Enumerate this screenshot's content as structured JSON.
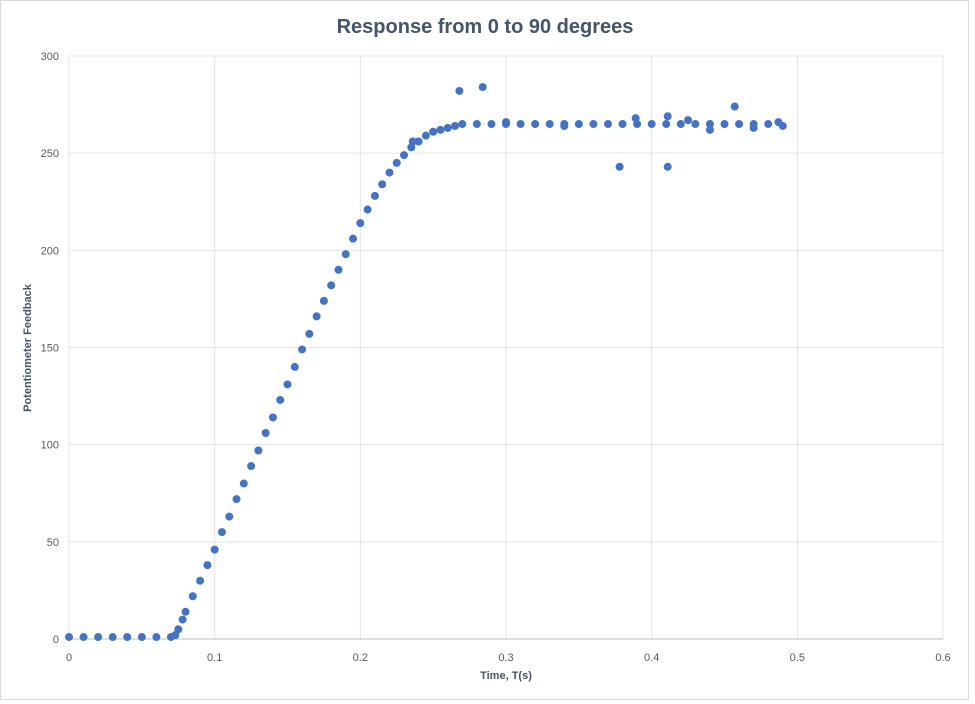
{
  "chart_data": {
    "type": "scatter",
    "title": "Response from 0 to 90 degrees",
    "xlabel": "Time, T(s)",
    "ylabel": "Potentiometer Feedback",
    "xlim": [
      0,
      0.6
    ],
    "ylim": [
      0,
      300
    ],
    "x_ticks": [
      "0",
      "0.1",
      "0.2",
      "0.3",
      "0.4",
      "0.5",
      "0.6"
    ],
    "y_ticks": [
      "0",
      "50",
      "100",
      "150",
      "200",
      "250",
      "300"
    ],
    "grid": true,
    "legend": "none",
    "color": "#4472c4",
    "series": [
      {
        "points": [
          [
            0.0,
            1
          ],
          [
            0.01,
            1
          ],
          [
            0.02,
            1
          ],
          [
            0.03,
            1
          ],
          [
            0.04,
            1
          ],
          [
            0.05,
            1
          ],
          [
            0.06,
            1
          ],
          [
            0.07,
            1
          ],
          [
            0.073,
            2
          ],
          [
            0.075,
            5
          ],
          [
            0.078,
            10
          ],
          [
            0.08,
            14
          ],
          [
            0.085,
            22
          ],
          [
            0.09,
            30
          ],
          [
            0.095,
            38
          ],
          [
            0.1,
            46
          ],
          [
            0.105,
            55
          ],
          [
            0.11,
            63
          ],
          [
            0.115,
            72
          ],
          [
            0.12,
            80
          ],
          [
            0.125,
            89
          ],
          [
            0.13,
            97
          ],
          [
            0.135,
            106
          ],
          [
            0.14,
            114
          ],
          [
            0.145,
            123
          ],
          [
            0.15,
            131
          ],
          [
            0.155,
            140
          ],
          [
            0.16,
            149
          ],
          [
            0.165,
            157
          ],
          [
            0.17,
            166
          ],
          [
            0.175,
            174
          ],
          [
            0.18,
            182
          ],
          [
            0.185,
            190
          ],
          [
            0.19,
            198
          ],
          [
            0.195,
            206
          ],
          [
            0.2,
            214
          ],
          [
            0.205,
            221
          ],
          [
            0.21,
            228
          ],
          [
            0.215,
            234
          ],
          [
            0.22,
            240
          ],
          [
            0.225,
            245
          ],
          [
            0.23,
            249
          ],
          [
            0.235,
            253
          ],
          [
            0.24,
            256
          ],
          [
            0.245,
            259
          ],
          [
            0.25,
            261
          ],
          [
            0.255,
            262
          ],
          [
            0.26,
            263
          ],
          [
            0.265,
            264
          ],
          [
            0.27,
            265
          ],
          [
            0.28,
            265
          ],
          [
            0.29,
            265
          ],
          [
            0.3,
            265
          ],
          [
            0.31,
            265
          ],
          [
            0.32,
            265
          ],
          [
            0.33,
            265
          ],
          [
            0.34,
            265
          ],
          [
            0.35,
            265
          ],
          [
            0.36,
            265
          ],
          [
            0.37,
            265
          ],
          [
            0.38,
            265
          ],
          [
            0.39,
            265
          ],
          [
            0.4,
            265
          ],
          [
            0.41,
            265
          ],
          [
            0.42,
            265
          ],
          [
            0.43,
            265
          ],
          [
            0.44,
            265
          ],
          [
            0.45,
            265
          ],
          [
            0.46,
            265
          ],
          [
            0.47,
            265
          ],
          [
            0.48,
            265
          ],
          [
            0.49,
            264
          ],
          [
            0.236,
            256
          ],
          [
            0.268,
            282
          ],
          [
            0.284,
            284
          ],
          [
            0.378,
            243
          ],
          [
            0.389,
            268
          ],
          [
            0.411,
            243
          ],
          [
            0.411,
            269
          ],
          [
            0.457,
            274
          ],
          [
            0.425,
            267
          ],
          [
            0.44,
            262
          ],
          [
            0.3,
            266
          ],
          [
            0.34,
            264
          ],
          [
            0.47,
            263
          ],
          [
            0.487,
            266
          ]
        ]
      }
    ]
  }
}
